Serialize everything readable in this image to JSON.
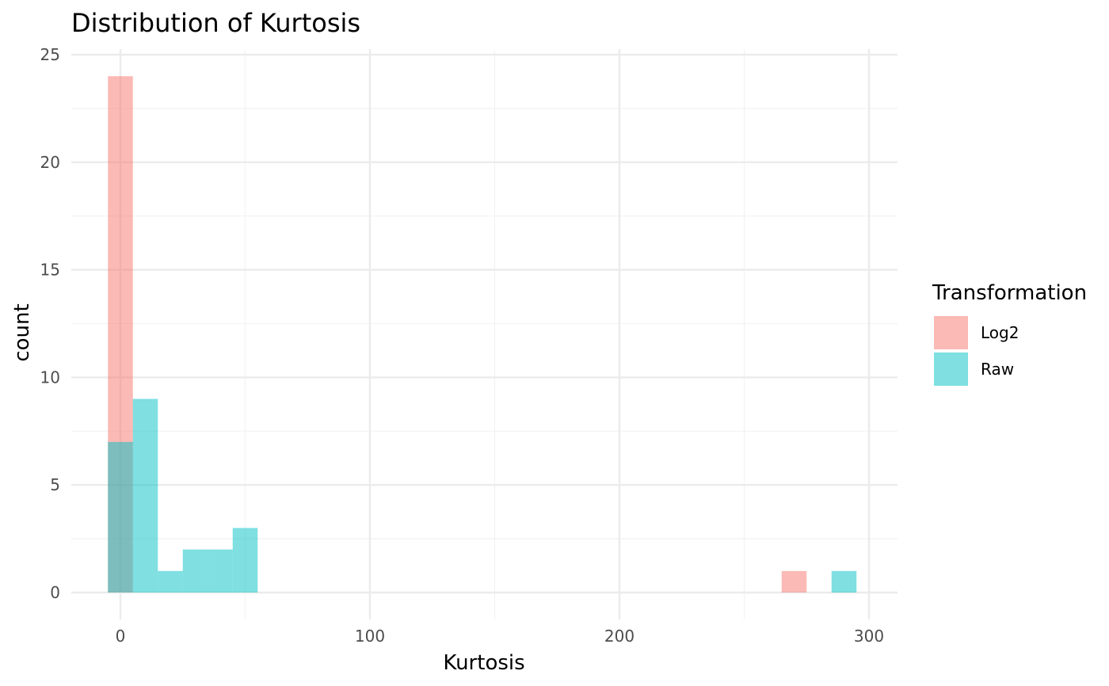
{
  "chart_data": {
    "type": "bar",
    "title": "Distribution of Kurtosis",
    "xlabel": "Kurtosis",
    "ylabel": "count",
    "xlim": [
      -20,
      310
    ],
    "ylim": [
      -1,
      25.5
    ],
    "x_ticks": [
      0,
      100,
      200,
      300
    ],
    "y_ticks": [
      0,
      5,
      10,
      15,
      20,
      25
    ],
    "grid": true,
    "legend": {
      "title": "Transformation",
      "position": "right"
    },
    "bin_edges_note": "",
    "series": [
      {
        "name": "Log2",
        "color": "#F8766D",
        "opacity": 0.5,
        "bins": [
          {
            "x0": -5,
            "x1": 5,
            "count": 24
          },
          {
            "x0": 265,
            "x1": 275,
            "count": 1
          }
        ]
      },
      {
        "name": "Raw",
        "color": "#00BFC4",
        "opacity": 0.5,
        "bins": [
          {
            "x0": -5,
            "x1": 5,
            "count": 7
          },
          {
            "x0": 5,
            "x1": 15,
            "count": 9
          },
          {
            "x0": 15,
            "x1": 25,
            "count": 1
          },
          {
            "x0": 25,
            "x1": 35,
            "count": 2
          },
          {
            "x0": 35,
            "x1": 45,
            "count": 2
          },
          {
            "x0": 45,
            "x1": 55,
            "count": 3
          },
          {
            "x0": 285,
            "x1": 295,
            "count": 1
          }
        ]
      }
    ]
  }
}
